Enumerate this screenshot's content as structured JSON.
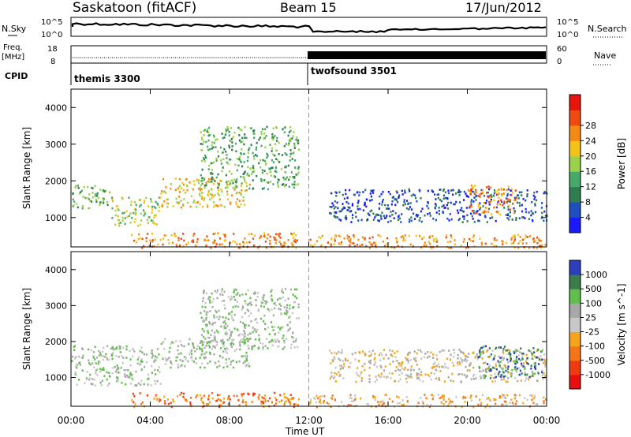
{
  "header": {
    "station": "Saskatoon (fitACF)",
    "beam": "Beam 15",
    "date": "17/Jun/2012"
  },
  "strip": {
    "nsky_label": "N.Sky",
    "nsky_tick_top": "10^5",
    "nsky_tick_bottom": "10^0",
    "nsearch_label": "N.Search",
    "nsearch_tick_top": "10^5",
    "nsearch_tick_bottom": "10^0",
    "freq_label": "Freq.",
    "freq_unit": "[MHz]",
    "freq_tick_top": "18",
    "freq_tick_bottom": "8",
    "nave_label": "Nave",
    "nave_tick_top": "60",
    "nave_tick_bottom": "0",
    "cpid_label": "CPID",
    "cpid_1": "themis 3300",
    "cpid_2": "twofsound 3501"
  },
  "x_axis": {
    "label": "Time UT",
    "ticks": [
      "00:00",
      "04:00",
      "08:00",
      "12:00",
      "16:00",
      "20:00",
      "00:00"
    ]
  },
  "chart_data": [
    {
      "type": "heatmap",
      "name_panel": "power",
      "ylabel": "Slant Range [km]",
      "yticks": [
        "1000",
        "2000",
        "3000",
        "4000"
      ],
      "ylim": [
        200,
        4500
      ],
      "xlim": [
        0,
        24
      ],
      "colorbar": {
        "label": "Power [dB]",
        "ticks": [
          "4",
          "8",
          "12",
          "16",
          "20",
          "24",
          "28"
        ],
        "colors": [
          "#1a1aff",
          "#1f4fbf",
          "#2d7d4f",
          "#46a86a",
          "#9bd24a",
          "#f5c21a",
          "#f58a12",
          "#ef4a0f",
          "#e8140c"
        ]
      },
      "echo_regions": [
        {
          "t0": 0.0,
          "t1": 2.0,
          "r0": 1250,
          "r1": 1900,
          "level": 3
        },
        {
          "t0": 2.0,
          "t1": 4.5,
          "r0": 800,
          "r1": 1600,
          "level": 4
        },
        {
          "t0": 4.5,
          "t1": 9.0,
          "r0": 1300,
          "r1": 2100,
          "level": 5
        },
        {
          "t0": 6.5,
          "t1": 11.5,
          "r0": 1800,
          "r1": 3500,
          "level": 3
        },
        {
          "t0": 3.0,
          "t1": 11.5,
          "r0": 200,
          "r1": 600,
          "level": 6
        },
        {
          "t0": 12.0,
          "t1": 24.0,
          "r0": 200,
          "r1": 550,
          "level": 6
        },
        {
          "t0": 13.0,
          "t1": 24.0,
          "r0": 900,
          "r1": 1800,
          "level": 1
        },
        {
          "t0": 20.0,
          "t1": 22.5,
          "r0": 1100,
          "r1": 1900,
          "level": 6
        }
      ]
    },
    {
      "type": "heatmap",
      "name_panel": "velocity",
      "ylabel": "Slant Range [km]",
      "yticks": [
        "1000",
        "2000",
        "3000",
        "4000"
      ],
      "ylim": [
        200,
        4500
      ],
      "xlim": [
        0,
        24
      ],
      "colorbar": {
        "label": "Velocity [m s^-1]",
        "ticks": [
          "1000",
          "500",
          "100",
          "25",
          "-25",
          "-100",
          "-500",
          "-1000"
        ],
        "colors": [
          "#2b3fbf",
          "#3b7d4a",
          "#5fbf4a",
          "#a8a8a8",
          "#c8c8c8",
          "#f5a51a",
          "#f5761a",
          "#ef3a12",
          "#e8100c"
        ]
      },
      "echo_regions": [
        {
          "t0": 0.0,
          "t1": 4.5,
          "r0": 800,
          "r1": 1900,
          "level": 3
        },
        {
          "t0": 4.5,
          "t1": 9.0,
          "r0": 1300,
          "r1": 2100,
          "level": 3
        },
        {
          "t0": 6.5,
          "t1": 11.5,
          "r0": 1800,
          "r1": 3500,
          "level": 3
        },
        {
          "t0": 3.0,
          "t1": 11.5,
          "r0": 200,
          "r1": 600,
          "level": 6
        },
        {
          "t0": 12.0,
          "t1": 24.0,
          "r0": 200,
          "r1": 550,
          "level": 5
        },
        {
          "t0": 13.0,
          "t1": 24.0,
          "r0": 900,
          "r1": 1800,
          "level": 4
        },
        {
          "t0": 20.5,
          "t1": 23.8,
          "r0": 1000,
          "r1": 1900,
          "level": 1
        }
      ]
    }
  ]
}
